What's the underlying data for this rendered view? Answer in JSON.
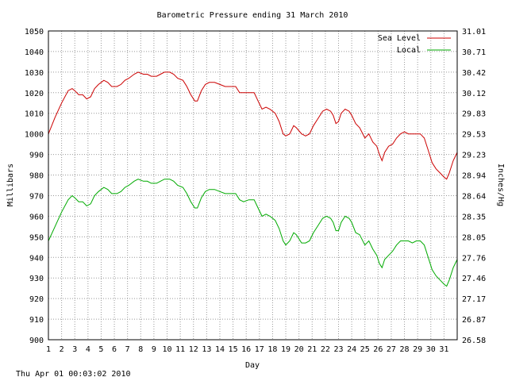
{
  "chart_data": {
    "type": "line",
    "title": "Barometric Pressure ending 31 March 2010",
    "xlabel": "Day",
    "ylabel": "Millibars",
    "y2label": "Inches/Hg",
    "xlim": [
      1,
      32
    ],
    "ylim": [
      900,
      1050
    ],
    "grid": true,
    "legend_position": "top-right",
    "x_ticks": [
      "1",
      "2",
      "3",
      "4",
      "5",
      "6",
      "7",
      "8",
      "9",
      "10",
      "11",
      "12",
      "13",
      "14",
      "15",
      "16",
      "17",
      "18",
      "19",
      "20",
      "21",
      "22",
      "23",
      "24",
      "25",
      "26",
      "27",
      "28",
      "29",
      "30",
      "31"
    ],
    "y_ticks": [
      "900",
      "910",
      "920",
      "930",
      "940",
      "950",
      "960",
      "970",
      "980",
      "990",
      "1000",
      "1010",
      "1020",
      "1030",
      "1040",
      "1050"
    ],
    "y2_ticks": [
      "26.58",
      "26.87",
      "27.17",
      "27.46",
      "27.76",
      "28.05",
      "28.35",
      "28.64",
      "28.94",
      "29.23",
      "29.53",
      "29.83",
      "30.12",
      "30.42",
      "30.71",
      "31.01"
    ],
    "series": [
      {
        "name": "Sea Level",
        "color": "#cc0000",
        "points": [
          [
            1,
            1000
          ],
          [
            1.5,
            1008
          ],
          [
            2,
            1015
          ],
          [
            2.5,
            1021
          ],
          [
            2.8,
            1022
          ],
          [
            3,
            1021
          ],
          [
            3.3,
            1019
          ],
          [
            3.6,
            1019
          ],
          [
            3.9,
            1017
          ],
          [
            4.2,
            1018
          ],
          [
            4.5,
            1022
          ],
          [
            4.8,
            1024
          ],
          [
            5,
            1025
          ],
          [
            5.2,
            1026
          ],
          [
            5.5,
            1025
          ],
          [
            5.8,
            1023
          ],
          [
            6.2,
            1023
          ],
          [
            6.5,
            1024
          ],
          [
            6.8,
            1026
          ],
          [
            7.1,
            1027
          ],
          [
            7.5,
            1029
          ],
          [
            7.8,
            1030
          ],
          [
            8.2,
            1029
          ],
          [
            8.5,
            1029
          ],
          [
            8.8,
            1028
          ],
          [
            9.2,
            1028
          ],
          [
            9.5,
            1029
          ],
          [
            9.8,
            1030
          ],
          [
            10.2,
            1030
          ],
          [
            10.5,
            1029
          ],
          [
            10.8,
            1027
          ],
          [
            11.2,
            1026
          ],
          [
            11.5,
            1023
          ],
          [
            11.8,
            1019
          ],
          [
            12.1,
            1016
          ],
          [
            12.3,
            1016
          ],
          [
            12.6,
            1021
          ],
          [
            12.9,
            1024
          ],
          [
            13.2,
            1025
          ],
          [
            13.6,
            1025
          ],
          [
            14,
            1024
          ],
          [
            14.4,
            1023
          ],
          [
            14.8,
            1023
          ],
          [
            15.2,
            1023
          ],
          [
            15.5,
            1020
          ],
          [
            15.8,
            1020
          ],
          [
            16.2,
            1020
          ],
          [
            16.6,
            1020
          ],
          [
            16.9,
            1016
          ],
          [
            17.2,
            1012
          ],
          [
            17.5,
            1013
          ],
          [
            17.8,
            1012
          ],
          [
            18.2,
            1010
          ],
          [
            18.5,
            1006
          ],
          [
            18.8,
            1000
          ],
          [
            19,
            999
          ],
          [
            19.3,
            1000
          ],
          [
            19.6,
            1004
          ],
          [
            19.8,
            1003
          ],
          [
            20.2,
            1000
          ],
          [
            20.5,
            999
          ],
          [
            20.8,
            1000
          ],
          [
            21.1,
            1004
          ],
          [
            21.4,
            1007
          ],
          [
            21.8,
            1011
          ],
          [
            22.1,
            1012
          ],
          [
            22.4,
            1011
          ],
          [
            22.6,
            1009
          ],
          [
            22.8,
            1005
          ],
          [
            23,
            1006
          ],
          [
            23.2,
            1010
          ],
          [
            23.5,
            1012
          ],
          [
            23.8,
            1011
          ],
          [
            24,
            1009
          ],
          [
            24.3,
            1005
          ],
          [
            24.6,
            1003
          ],
          [
            25,
            998
          ],
          [
            25.3,
            1000
          ],
          [
            25.6,
            996
          ],
          [
            25.9,
            994
          ],
          [
            26.1,
            990
          ],
          [
            26.3,
            987
          ],
          [
            26.5,
            991
          ],
          [
            26.8,
            994
          ],
          [
            27.1,
            995
          ],
          [
            27.4,
            998
          ],
          [
            27.7,
            1000
          ],
          [
            28,
            1001
          ],
          [
            28.3,
            1000
          ],
          [
            28.6,
            1000
          ],
          [
            28.9,
            1000
          ],
          [
            29.2,
            1000
          ],
          [
            29.5,
            998
          ],
          [
            29.8,
            992
          ],
          [
            30.1,
            986
          ],
          [
            30.4,
            983
          ],
          [
            30.7,
            981
          ],
          [
            31,
            979
          ],
          [
            31.2,
            978
          ],
          [
            31.4,
            981
          ],
          [
            31.7,
            987
          ],
          [
            32,
            991
          ]
        ]
      },
      {
        "name": "Local",
        "color": "#00aa00",
        "points": [
          [
            1,
            948
          ],
          [
            1.5,
            955
          ],
          [
            2,
            962
          ],
          [
            2.5,
            968
          ],
          [
            2.8,
            970
          ],
          [
            3,
            969
          ],
          [
            3.3,
            967
          ],
          [
            3.6,
            967
          ],
          [
            3.9,
            965
          ],
          [
            4.2,
            966
          ],
          [
            4.5,
            970
          ],
          [
            4.8,
            972
          ],
          [
            5,
            973
          ],
          [
            5.2,
            974
          ],
          [
            5.5,
            973
          ],
          [
            5.8,
            971
          ],
          [
            6.2,
            971
          ],
          [
            6.5,
            972
          ],
          [
            6.8,
            974
          ],
          [
            7.1,
            975
          ],
          [
            7.5,
            977
          ],
          [
            7.8,
            978
          ],
          [
            8.2,
            977
          ],
          [
            8.5,
            977
          ],
          [
            8.8,
            976
          ],
          [
            9.2,
            976
          ],
          [
            9.5,
            977
          ],
          [
            9.8,
            978
          ],
          [
            10.2,
            978
          ],
          [
            10.5,
            977
          ],
          [
            10.8,
            975
          ],
          [
            11.2,
            974
          ],
          [
            11.5,
            971
          ],
          [
            11.8,
            967
          ],
          [
            12.1,
            964
          ],
          [
            12.3,
            964
          ],
          [
            12.6,
            969
          ],
          [
            12.9,
            972
          ],
          [
            13.2,
            973
          ],
          [
            13.6,
            973
          ],
          [
            14,
            972
          ],
          [
            14.4,
            971
          ],
          [
            14.8,
            971
          ],
          [
            15.2,
            971
          ],
          [
            15.5,
            968
          ],
          [
            15.8,
            967
          ],
          [
            16.2,
            968
          ],
          [
            16.6,
            968
          ],
          [
            16.9,
            964
          ],
          [
            17.2,
            960
          ],
          [
            17.5,
            961
          ],
          [
            17.8,
            960
          ],
          [
            18.2,
            958
          ],
          [
            18.5,
            954
          ],
          [
            18.8,
            948
          ],
          [
            19,
            946
          ],
          [
            19.3,
            948
          ],
          [
            19.6,
            952
          ],
          [
            19.8,
            951
          ],
          [
            20.2,
            947
          ],
          [
            20.5,
            947
          ],
          [
            20.8,
            948
          ],
          [
            21.1,
            952
          ],
          [
            21.4,
            955
          ],
          [
            21.8,
            959
          ],
          [
            22.1,
            960
          ],
          [
            22.4,
            959
          ],
          [
            22.6,
            957
          ],
          [
            22.8,
            953
          ],
          [
            23,
            953
          ],
          [
            23.2,
            957
          ],
          [
            23.5,
            960
          ],
          [
            23.8,
            959
          ],
          [
            24,
            957
          ],
          [
            24.3,
            952
          ],
          [
            24.6,
            951
          ],
          [
            25,
            946
          ],
          [
            25.3,
            948
          ],
          [
            25.6,
            944
          ],
          [
            25.9,
            941
          ],
          [
            26.1,
            937
          ],
          [
            26.3,
            935
          ],
          [
            26.5,
            939
          ],
          [
            26.8,
            941
          ],
          [
            27.1,
            943
          ],
          [
            27.4,
            946
          ],
          [
            27.7,
            948
          ],
          [
            28,
            948
          ],
          [
            28.3,
            948
          ],
          [
            28.6,
            947
          ],
          [
            28.9,
            948
          ],
          [
            29.2,
            948
          ],
          [
            29.5,
            946
          ],
          [
            29.8,
            940
          ],
          [
            30.1,
            934
          ],
          [
            30.4,
            931
          ],
          [
            30.7,
            929
          ],
          [
            31,
            927
          ],
          [
            31.2,
            926
          ],
          [
            31.4,
            929
          ],
          [
            31.7,
            935
          ],
          [
            32,
            939
          ]
        ]
      }
    ]
  },
  "footer": {
    "timestamp": "Thu Apr 01 00:03:02 2010"
  }
}
